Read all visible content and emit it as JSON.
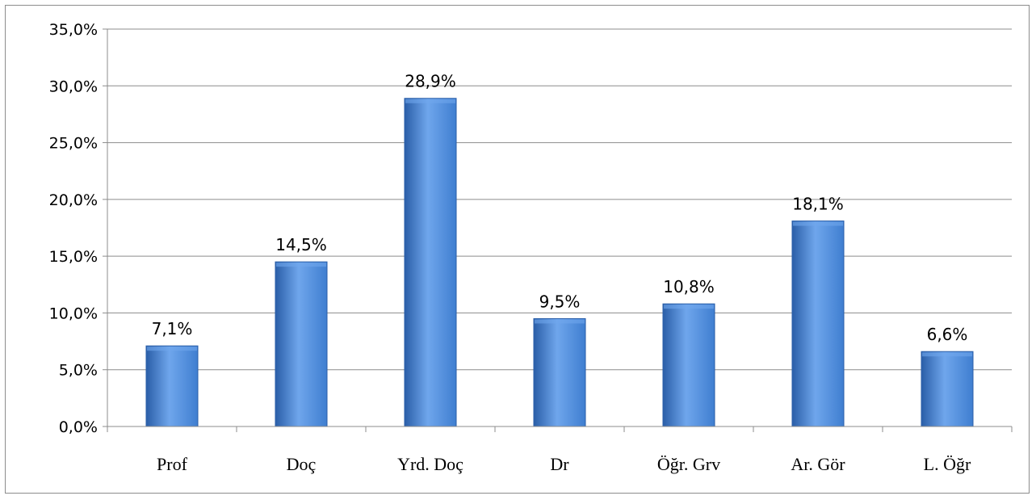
{
  "chart_data": {
    "type": "bar",
    "categories": [
      "Prof",
      "Doç",
      "Yrd. Doç",
      "Dr",
      "Öğr. Grv",
      "Ar. Gör",
      "L. Öğr"
    ],
    "values": [
      7.1,
      14.5,
      28.9,
      9.5,
      10.8,
      18.1,
      6.6
    ],
    "data_labels": [
      "7,1%",
      "14,5%",
      "28,9%",
      "9,5%",
      "10,8%",
      "18,1%",
      "6,6%"
    ],
    "y_tick_values": [
      0,
      5,
      10,
      15,
      20,
      25,
      30,
      35
    ],
    "y_tick_labels": [
      "0,0%",
      "5,0%",
      "10,0%",
      "15,0%",
      "20,0%",
      "25,0%",
      "30,0%",
      "35,0%"
    ],
    "ylim": [
      0,
      35
    ],
    "grid": true,
    "legend": "none",
    "title": "",
    "xlabel": "",
    "ylabel": "",
    "colors": {
      "bar_light": "#6fa6ec",
      "bar_mid": "#3f7ed0",
      "bar_dark": "#2a5ea8",
      "gridline": "#8c8c8c",
      "frame": "#8c8c8c"
    }
  }
}
